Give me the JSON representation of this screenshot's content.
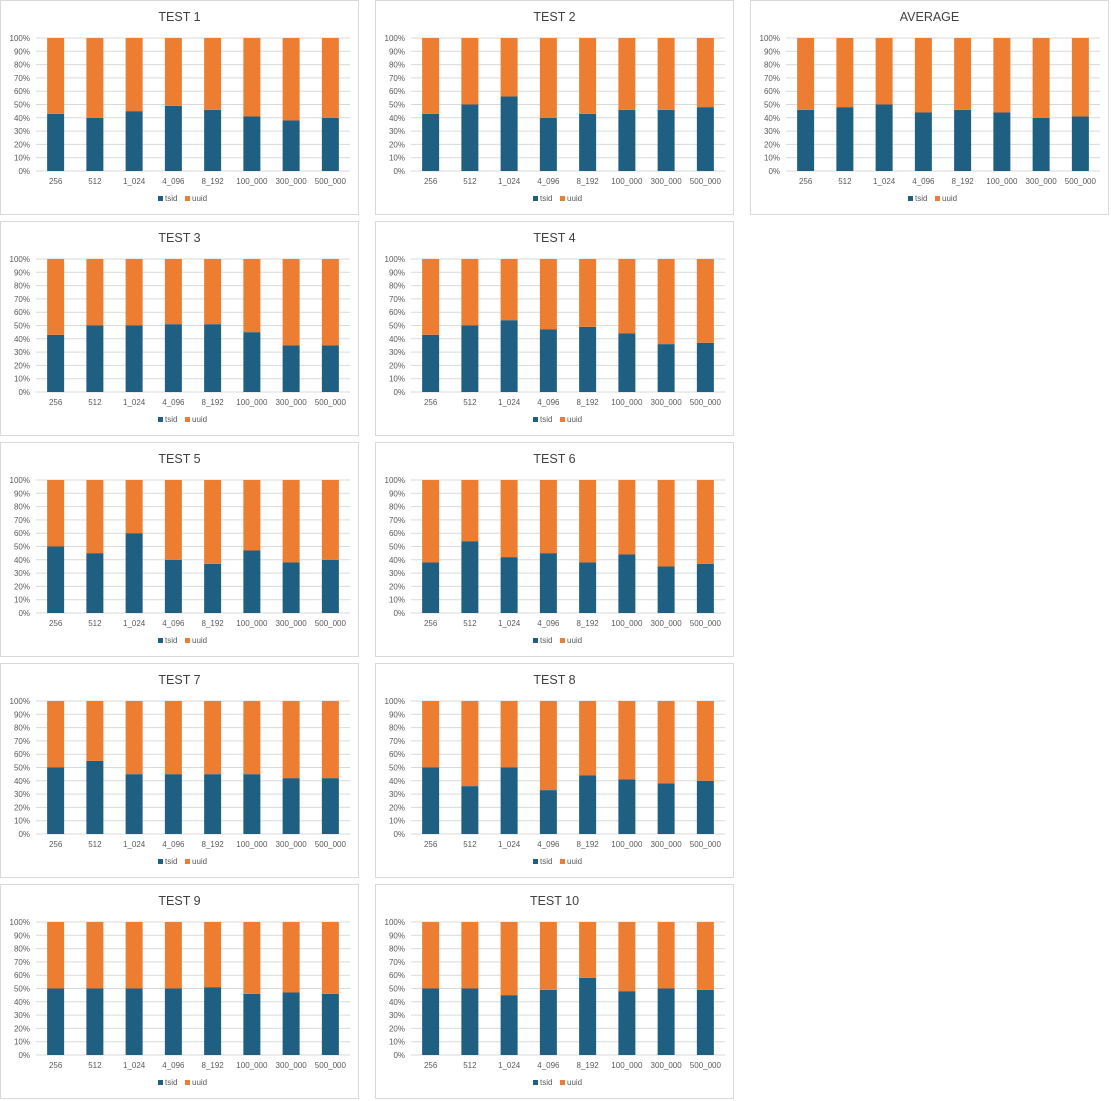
{
  "colors": {
    "tsid": "#1f5f82",
    "uuid": "#ed7d31",
    "grid": "#d9d9d9",
    "axis_text": "#595959"
  },
  "chart_data": [
    {
      "type": "bar",
      "stacked": "percent",
      "title": "TEST 1",
      "categories": [
        "256",
        "512",
        "1_024",
        "4_096",
        "8_192",
        "100_000",
        "300_000",
        "500_000"
      ],
      "y_ticks": [
        "0%",
        "10%",
        "20%",
        "30%",
        "40%",
        "50%",
        "60%",
        "70%",
        "80%",
        "90%",
        "100%"
      ],
      "ylim": [
        0,
        100
      ],
      "legend": "bottom",
      "grid": true,
      "series": [
        {
          "name": "tsid",
          "values": [
            43,
            40,
            45,
            49,
            46,
            41,
            38,
            40
          ]
        },
        {
          "name": "uuid",
          "values": [
            57,
            60,
            55,
            51,
            54,
            59,
            62,
            60
          ]
        }
      ]
    },
    {
      "type": "bar",
      "stacked": "percent",
      "title": "TEST 2",
      "categories": [
        "256",
        "512",
        "1_024",
        "4_096",
        "8_192",
        "100_000",
        "300_000",
        "500_000"
      ],
      "y_ticks": [
        "0%",
        "10%",
        "20%",
        "30%",
        "40%",
        "50%",
        "60%",
        "70%",
        "80%",
        "90%",
        "100%"
      ],
      "ylim": [
        0,
        100
      ],
      "legend": "bottom",
      "grid": true,
      "series": [
        {
          "name": "tsid",
          "values": [
            43,
            50,
            56,
            40,
            43,
            46,
            46,
            48
          ]
        },
        {
          "name": "uuid",
          "values": [
            57,
            50,
            44,
            60,
            57,
            54,
            54,
            52
          ]
        }
      ]
    },
    {
      "type": "bar",
      "stacked": "percent",
      "title": "AVERAGE",
      "categories": [
        "256",
        "512",
        "1_024",
        "4_096",
        "8_192",
        "100_000",
        "300_000",
        "500_000"
      ],
      "y_ticks": [
        "0%",
        "10%",
        "20%",
        "30%",
        "40%",
        "50%",
        "60%",
        "70%",
        "80%",
        "90%",
        "100%"
      ],
      "ylim": [
        0,
        100
      ],
      "legend": "bottom",
      "grid": true,
      "series": [
        {
          "name": "tsid",
          "values": [
            46,
            48,
            50,
            44,
            46,
            44,
            40,
            41
          ]
        },
        {
          "name": "uuid",
          "values": [
            54,
            52,
            50,
            56,
            54,
            56,
            60,
            59
          ]
        }
      ]
    },
    {
      "type": "bar",
      "stacked": "percent",
      "title": "TEST 3",
      "categories": [
        "256",
        "512",
        "1_024",
        "4_096",
        "8_192",
        "100_000",
        "300_000",
        "500_000"
      ],
      "y_ticks": [
        "0%",
        "10%",
        "20%",
        "30%",
        "40%",
        "50%",
        "60%",
        "70%",
        "80%",
        "90%",
        "100%"
      ],
      "ylim": [
        0,
        100
      ],
      "legend": "bottom",
      "grid": true,
      "series": [
        {
          "name": "tsid",
          "values": [
            43,
            50,
            50,
            51,
            51,
            45,
            35,
            35
          ]
        },
        {
          "name": "uuid",
          "values": [
            57,
            50,
            50,
            49,
            49,
            55,
            65,
            65
          ]
        }
      ]
    },
    {
      "type": "bar",
      "stacked": "percent",
      "title": "TEST 4",
      "categories": [
        "256",
        "512",
        "1_024",
        "4_096",
        "8_192",
        "100_000",
        "300_000",
        "500_000"
      ],
      "y_ticks": [
        "0%",
        "10%",
        "20%",
        "30%",
        "40%",
        "50%",
        "60%",
        "70%",
        "80%",
        "90%",
        "100%"
      ],
      "ylim": [
        0,
        100
      ],
      "legend": "bottom",
      "grid": true,
      "series": [
        {
          "name": "tsid",
          "values": [
            43,
            50,
            54,
            47,
            49,
            44,
            36,
            37
          ]
        },
        {
          "name": "uuid",
          "values": [
            57,
            50,
            46,
            53,
            51,
            56,
            64,
            63
          ]
        }
      ]
    },
    {
      "type": "bar",
      "stacked": "percent",
      "title": "TEST 5",
      "categories": [
        "256",
        "512",
        "1_024",
        "4_096",
        "8_192",
        "100_000",
        "300_000",
        "500_000"
      ],
      "y_ticks": [
        "0%",
        "10%",
        "20%",
        "30%",
        "40%",
        "50%",
        "60%",
        "70%",
        "80%",
        "90%",
        "100%"
      ],
      "ylim": [
        0,
        100
      ],
      "legend": "bottom",
      "grid": true,
      "series": [
        {
          "name": "tsid",
          "values": [
            50,
            45,
            60,
            40,
            37,
            47,
            38,
            40
          ]
        },
        {
          "name": "uuid",
          "values": [
            50,
            55,
            40,
            60,
            63,
            53,
            62,
            60
          ]
        }
      ]
    },
    {
      "type": "bar",
      "stacked": "percent",
      "title": "TEST 6",
      "categories": [
        "256",
        "512",
        "1_024",
        "4_096",
        "8_192",
        "100_000",
        "300_000",
        "500_000"
      ],
      "y_ticks": [
        "0%",
        "10%",
        "20%",
        "30%",
        "40%",
        "50%",
        "60%",
        "70%",
        "80%",
        "90%",
        "100%"
      ],
      "ylim": [
        0,
        100
      ],
      "legend": "bottom",
      "grid": true,
      "series": [
        {
          "name": "tsid",
          "values": [
            38,
            54,
            42,
            45,
            38,
            44,
            35,
            37
          ]
        },
        {
          "name": "uuid",
          "values": [
            62,
            46,
            58,
            55,
            62,
            56,
            65,
            63
          ]
        }
      ]
    },
    {
      "type": "bar",
      "stacked": "percent",
      "title": "TEST 7",
      "categories": [
        "256",
        "512",
        "1_024",
        "4_096",
        "8_192",
        "100_000",
        "300_000",
        "500_000"
      ],
      "y_ticks": [
        "0%",
        "10%",
        "20%",
        "30%",
        "40%",
        "50%",
        "60%",
        "70%",
        "80%",
        "90%",
        "100%"
      ],
      "ylim": [
        0,
        100
      ],
      "legend": "bottom",
      "grid": true,
      "series": [
        {
          "name": "tsid",
          "values": [
            50,
            55,
            45,
            45,
            45,
            45,
            42,
            42
          ]
        },
        {
          "name": "uuid",
          "values": [
            50,
            45,
            55,
            55,
            55,
            55,
            58,
            58
          ]
        }
      ]
    },
    {
      "type": "bar",
      "stacked": "percent",
      "title": "TEST 8",
      "categories": [
        "256",
        "512",
        "1_024",
        "4_096",
        "8_192",
        "100_000",
        "300_000",
        "500_000"
      ],
      "y_ticks": [
        "0%",
        "10%",
        "20%",
        "30%",
        "40%",
        "50%",
        "60%",
        "70%",
        "80%",
        "90%",
        "100%"
      ],
      "ylim": [
        0,
        100
      ],
      "legend": "bottom",
      "grid": true,
      "series": [
        {
          "name": "tsid",
          "values": [
            50,
            36,
            50,
            33,
            44,
            41,
            38,
            40
          ]
        },
        {
          "name": "uuid",
          "values": [
            50,
            64,
            50,
            67,
            56,
            59,
            62,
            60
          ]
        }
      ]
    },
    {
      "type": "bar",
      "stacked": "percent",
      "title": "TEST 9",
      "categories": [
        "256",
        "512",
        "1_024",
        "4_096",
        "8_192",
        "100_000",
        "300_000",
        "500_000"
      ],
      "y_ticks": [
        "0%",
        "10%",
        "20%",
        "30%",
        "40%",
        "50%",
        "60%",
        "70%",
        "80%",
        "90%",
        "100%"
      ],
      "ylim": [
        0,
        100
      ],
      "legend": "bottom",
      "grid": true,
      "series": [
        {
          "name": "tsid",
          "values": [
            50,
            50,
            50,
            50,
            51,
            46,
            47,
            46
          ]
        },
        {
          "name": "uuid",
          "values": [
            50,
            50,
            50,
            50,
            49,
            54,
            53,
            54
          ]
        }
      ]
    },
    {
      "type": "bar",
      "stacked": "percent",
      "title": "TEST 10",
      "categories": [
        "256",
        "512",
        "1_024",
        "4_096",
        "8_192",
        "100_000",
        "300_000",
        "500_000"
      ],
      "y_ticks": [
        "0%",
        "10%",
        "20%",
        "30%",
        "40%",
        "50%",
        "60%",
        "70%",
        "80%",
        "90%",
        "100%"
      ],
      "ylim": [
        0,
        100
      ],
      "legend": "bottom",
      "grid": true,
      "series": [
        {
          "name": "tsid",
          "values": [
            50,
            50,
            45,
            49,
            58,
            48,
            50,
            49
          ]
        },
        {
          "name": "uuid",
          "values": [
            50,
            50,
            55,
            51,
            42,
            52,
            50,
            51
          ]
        }
      ]
    }
  ]
}
